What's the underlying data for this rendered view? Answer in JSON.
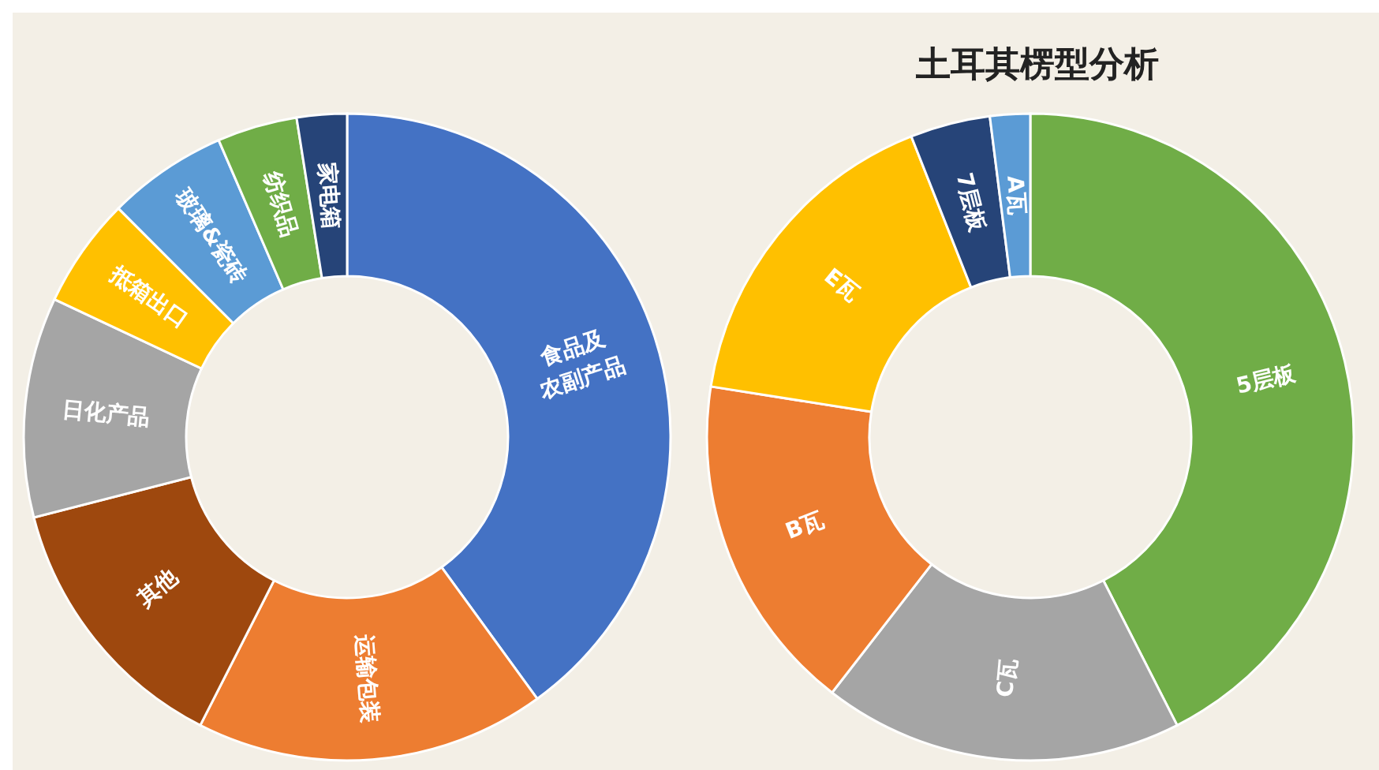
{
  "chart_data": [
    {
      "type": "donut",
      "categories": [
        "食品及农副产品",
        "运输包装",
        "其他",
        "日化产品",
        "抵箱出口",
        "玻璃&瓷砖",
        "纺织品",
        "家电箱"
      ],
      "values": [
        40,
        17.5,
        13.5,
        11,
        5.5,
        6,
        4,
        2.5
      ],
      "colors": [
        "#4472c4",
        "#ed7d31",
        "#9e480e",
        "#a5a5a5",
        "#ffc000",
        "#5b9bd5",
        "#70ad47",
        "#264478"
      ],
      "legend": false
    },
    {
      "type": "donut",
      "title": "土耳其楞型分析",
      "categories": [
        "5层板",
        "C瓦",
        "B瓦",
        "E瓦",
        "7层板",
        "A瓦"
      ],
      "values": [
        42.5,
        18,
        17,
        16.5,
        4,
        2
      ],
      "colors": [
        "#70ad47",
        "#a5a5a5",
        "#ed7d31",
        "#ffc000",
        "#264478",
        "#5b9bd5"
      ],
      "legend": false
    }
  ]
}
